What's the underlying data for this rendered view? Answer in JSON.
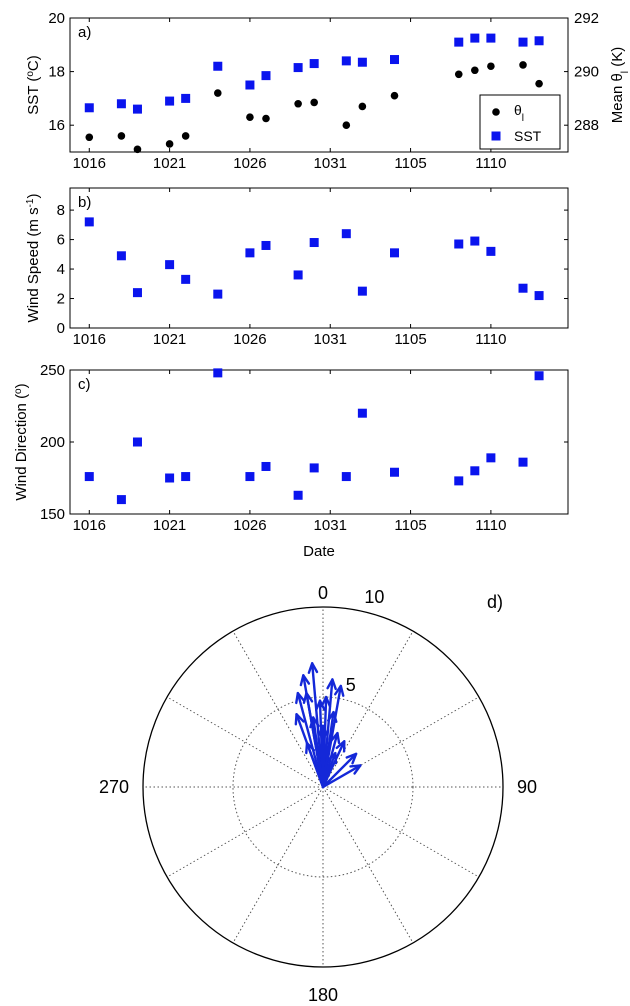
{
  "dates": [
    "1016",
    "1018",
    "1019",
    "1021",
    "1022",
    "1024",
    "1026",
    "1027",
    "1029",
    "1030",
    "1032",
    "1033",
    "1104",
    "1108",
    "1109",
    "1110",
    "1112",
    "1113"
  ],
  "date_ticks": {
    "positions": [
      0,
      5,
      10,
      15,
      20,
      25
    ],
    "labels": [
      "1016",
      "1021",
      "1026",
      "1031",
      "1105",
      "1110"
    ]
  },
  "xlabel": "Date",
  "colors": {
    "sst": "#0a14ee",
    "theta": "#000000",
    "arrow": "#1428d8"
  },
  "chart_data": [
    {
      "type": "scatter",
      "panel": "a)",
      "ylabel": "SST (°C)",
      "ylabel_right": "Mean θl (K)",
      "ylim": [
        15,
        20
      ],
      "yticks": [
        16,
        18,
        20
      ],
      "ylim_right": [
        287,
        292
      ],
      "yticks_right": [
        288,
        290,
        292
      ],
      "xlim": [
        -1.2,
        29.8
      ],
      "legend": {
        "placement": "bottom-right",
        "entries": [
          "θl",
          "SST"
        ]
      },
      "series": [
        {
          "name": "SST",
          "axis": "left",
          "marker": "square",
          "x": [
            0,
            2,
            3,
            5,
            6,
            8,
            10,
            11,
            13,
            14,
            16,
            17,
            19,
            23,
            24,
            25,
            27,
            28
          ],
          "y": [
            16.65,
            16.8,
            16.6,
            16.9,
            17.0,
            18.2,
            17.5,
            17.85,
            18.15,
            18.3,
            18.4,
            18.35,
            18.45,
            19.1,
            19.25,
            19.25,
            19.1,
            19.15
          ]
        },
        {
          "name": "θl",
          "axis": "right",
          "marker": "circle",
          "x": [
            0,
            2,
            3,
            5,
            6,
            8,
            10,
            11,
            13,
            14,
            16,
            17,
            19,
            23,
            24,
            25,
            27,
            28
          ],
          "y": [
            287.55,
            287.6,
            287.1,
            287.3,
            287.6,
            289.2,
            288.3,
            288.25,
            288.8,
            288.85,
            288.0,
            288.7,
            289.1,
            289.9,
            290.05,
            290.2,
            290.25,
            289.55
          ]
        }
      ]
    },
    {
      "type": "scatter",
      "panel": "b)",
      "ylabel": "Wind Speed (m s⁻¹)",
      "ylim": [
        0,
        9.5
      ],
      "yticks": [
        0,
        2,
        4,
        6,
        8
      ],
      "xlim": [
        -1.2,
        29.8
      ],
      "series": [
        {
          "name": "Wind Speed",
          "marker": "square",
          "x": [
            0,
            2,
            3,
            5,
            6,
            8,
            10,
            11,
            13,
            14,
            16,
            17,
            19,
            23,
            24,
            25,
            27,
            28
          ],
          "y": [
            7.2,
            4.9,
            2.4,
            4.3,
            3.3,
            2.3,
            5.1,
            5.6,
            3.6,
            5.8,
            6.4,
            2.5,
            5.1,
            5.7,
            5.9,
            5.2,
            2.7,
            2.2
          ]
        }
      ]
    },
    {
      "type": "scatter",
      "panel": "c)",
      "ylabel": "Wind Direction (°)",
      "ylim": [
        150,
        250
      ],
      "yticks": [
        150,
        200,
        250
      ],
      "xlim": [
        -1.2,
        29.8
      ],
      "series": [
        {
          "name": "Wind Direction",
          "marker": "square",
          "x": [
            0,
            2,
            3,
            5,
            6,
            8,
            10,
            11,
            13,
            14,
            16,
            17,
            19,
            23,
            24,
            25,
            27,
            28
          ],
          "y": [
            176,
            160,
            200,
            175,
            176,
            248,
            176,
            183,
            163,
            182,
            176,
            220,
            179,
            173,
            180,
            189,
            186,
            246
          ]
        }
      ]
    },
    {
      "type": "polar",
      "panel": "d)",
      "rmax": 10,
      "ring_labels": [
        {
          "r": 5,
          "label": "5"
        },
        {
          "r": 10,
          "label": "10"
        }
      ],
      "angle_labels": [
        {
          "deg": 0,
          "label": "0"
        },
        {
          "deg": 90,
          "label": "90"
        },
        {
          "deg": 180,
          "label": "180"
        },
        {
          "deg": 270,
          "label": "270"
        }
      ],
      "spoke_step_deg": 30,
      "vectors": [
        {
          "angle": 355,
          "mag": 6.9
        },
        {
          "angle": 345,
          "mag": 5.4
        },
        {
          "angle": 340,
          "mag": 4.3
        },
        {
          "angle": 350,
          "mag": 6.3
        },
        {
          "angle": 5,
          "mag": 6.0
        },
        {
          "angle": 10,
          "mag": 5.7
        },
        {
          "angle": 2,
          "mag": 5.0
        },
        {
          "angle": 350,
          "mag": 5.3
        },
        {
          "angle": 358,
          "mag": 4.8
        },
        {
          "angle": 8,
          "mag": 4.2
        },
        {
          "angle": 352,
          "mag": 3.9
        },
        {
          "angle": 0,
          "mag": 3.4
        },
        {
          "angle": 15,
          "mag": 3.1
        },
        {
          "angle": 25,
          "mag": 2.8
        },
        {
          "angle": 45,
          "mag": 2.6
        },
        {
          "angle": 60,
          "mag": 2.4
        },
        {
          "angle": 20,
          "mag": 2.0
        },
        {
          "angle": 340,
          "mag": 2.6
        }
      ]
    }
  ]
}
